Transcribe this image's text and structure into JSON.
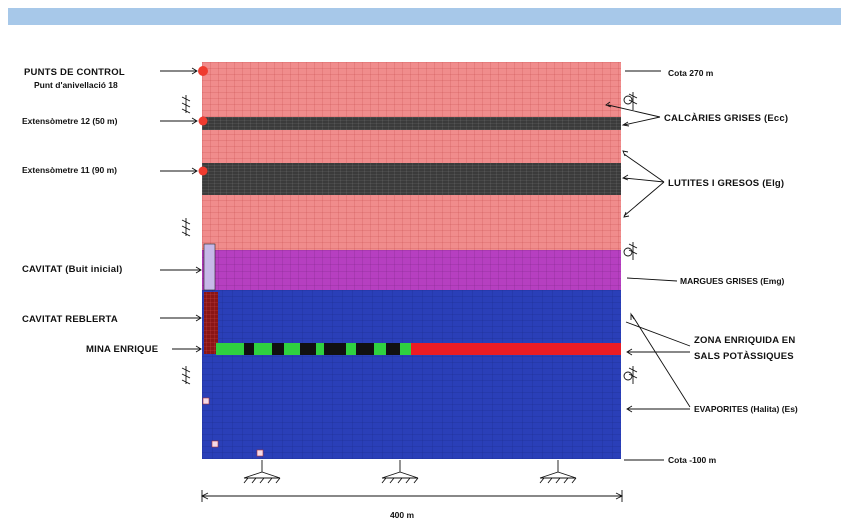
{
  "header": {
    "bar_color": "#a7c8e9"
  },
  "left_labels": {
    "control_points_title": "PUNTS DE CONTROL",
    "control_points_sub": "Punt d'anivellació 18",
    "extensometer_12": "Extensòmetre 12 (50 m)",
    "extensometer_11": "Extensòmetre 11 (90 m)",
    "cavity_initial": "CAVITAT (Buit inicial)",
    "cavity_filled": "CAVITAT REBLERTA",
    "mine": "MINA ENRIQUE"
  },
  "right_labels": {
    "top_elevation": "Cota 270 m",
    "grey_limestones": "CALCÀRIES GRISES (Ecc)",
    "lutites": "LUTITES I GRESOS (Elg)",
    "grey_marls": "MARGUES GRISES (Emg)",
    "potash_line1": "ZONA ENRIQUIDA EN",
    "potash_line2": "SALS POTÀSSIQUES",
    "evaporites": "EVAPORITES (Halita) (Es)",
    "bottom_elevation": "Cota -100 m"
  },
  "dimension": {
    "width_label": "400 m"
  },
  "colors": {
    "limestone": "#f08c8c",
    "lutite_band": "#3b3b3b",
    "marls": "#b63fc0",
    "evaporites": "#2a3fb8",
    "potash_green": "#2fd140",
    "potash_red": "#ec1c24",
    "control_point": "#ef3b2f",
    "cavity_fill": "#8a1515"
  }
}
